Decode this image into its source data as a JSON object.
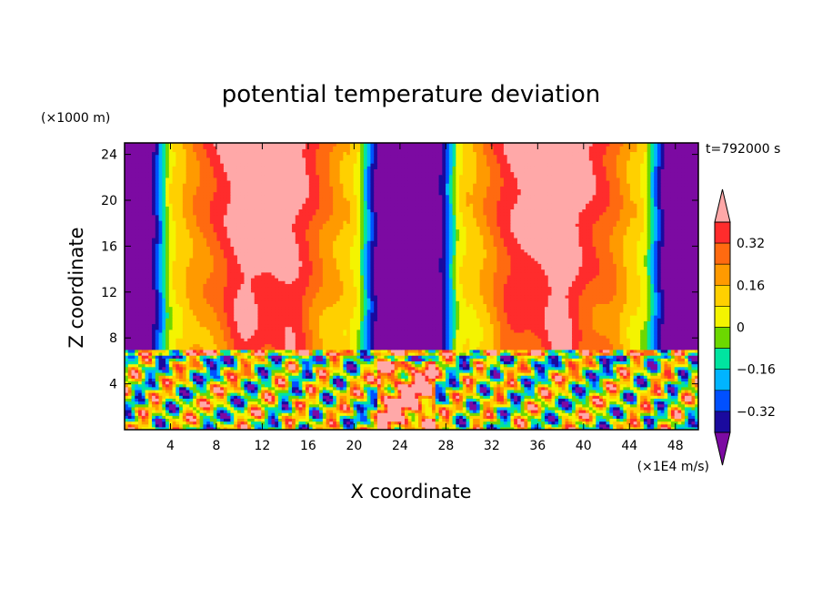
{
  "chart_data": {
    "type": "heatmap",
    "title": "potential temperature deviation",
    "xlabel": "X coordinate",
    "ylabel": "Z coordinate",
    "x_unit": "(×1E4 m/s)",
    "y_unit": "(×1000 m)",
    "time_label": "t=792000 s",
    "xlim": [
      0,
      50
    ],
    "ylim": [
      0,
      25
    ],
    "x_ticks": [
      4,
      8,
      12,
      16,
      20,
      24,
      28,
      32,
      36,
      40,
      44,
      48
    ],
    "y_ticks": [
      4,
      8,
      12,
      16,
      20,
      24
    ],
    "colorbar": {
      "levels": [
        -0.4,
        -0.32,
        -0.24,
        -0.16,
        -0.08,
        0,
        0.08,
        0.16,
        0.24,
        0.32,
        0.4
      ],
      "labeled_levels": [
        "0.32",
        "0.16",
        "0",
        "-0.16",
        "-0.32"
      ],
      "colors": [
        "#7c0aa2",
        "#1a0a9e",
        "#0050ff",
        "#00b4ff",
        "#00e4a0",
        "#6cd800",
        "#f4f400",
        "#ffd000",
        "#ff9a00",
        "#ff6a10",
        "#ff2c2c",
        "#ffa8a8"
      ],
      "extend": "both"
    },
    "field_features": {
      "interface_height": 7,
      "warm_bands_x": [
        [
          3,
          22.5
        ],
        [
          27,
          47
        ]
      ],
      "cold_band_x": [
        22.5,
        27
      ]
    }
  }
}
